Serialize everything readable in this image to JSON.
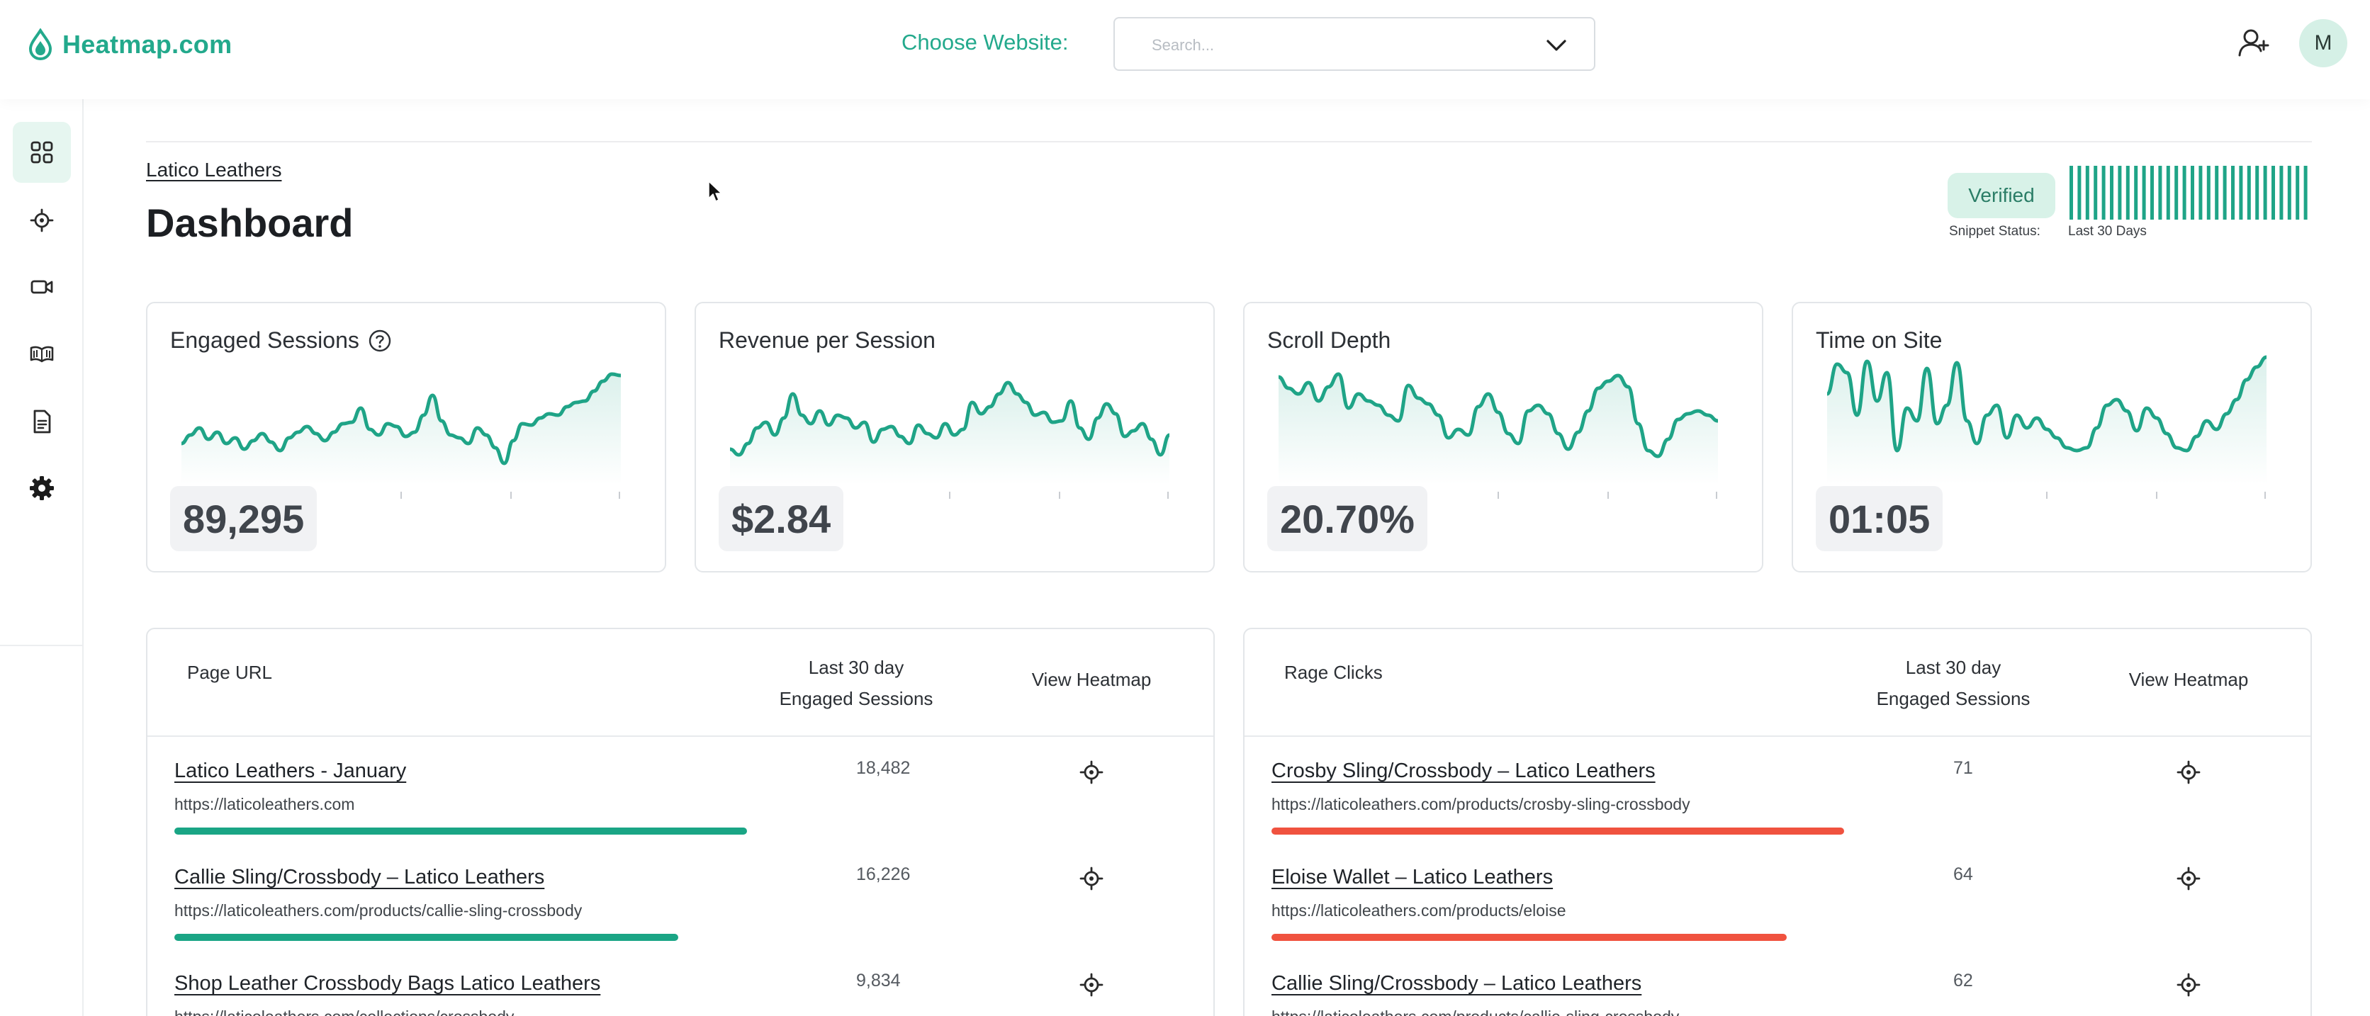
{
  "app": {
    "name": "Heatmap.com"
  },
  "header": {
    "choose_label": "Choose Website:",
    "search_placeholder": "Search...",
    "avatar_initial": "M"
  },
  "sidebar": {
    "items": [
      {
        "icon": "dashboard-grid-icon",
        "active": true
      },
      {
        "icon": "crosshair-icon",
        "active": false
      },
      {
        "icon": "video-camera-icon",
        "active": false
      },
      {
        "icon": "book-icon",
        "active": false
      },
      {
        "icon": "document-icon",
        "active": false
      },
      {
        "icon": "gear-icon",
        "active": false
      }
    ]
  },
  "page": {
    "breadcrumb": "Latico Leathers",
    "title": "Dashboard",
    "status_badge": "Verified",
    "snippet_label": "Snippet Status:",
    "snippet_period": "Last 30 Days"
  },
  "metrics": [
    {
      "title": "Engaged Sessions",
      "value": "89,295",
      "has_help": true
    },
    {
      "title": "Revenue per Session",
      "value": "$2.84",
      "has_help": false
    },
    {
      "title": "Scroll Depth",
      "value": "20.70%",
      "has_help": false
    },
    {
      "title": "Time on Site",
      "value": "01:05",
      "has_help": false
    }
  ],
  "pages_table": {
    "col1": "Page URL",
    "col2_line1": "Last 30 day",
    "col2_line2": "Engaged Sessions",
    "col3": "View Heatmap",
    "bar_color": "#1aa585",
    "rows": [
      {
        "title": "Latico Leathers - January",
        "url": "https://laticoleathers.com",
        "count": "18,482",
        "share": 1.0
      },
      {
        "title": "Callie Sling/Crossbody – Latico Leathers",
        "url": "https://laticoleathers.com/products/callie-sling-crossbody",
        "count": "16,226",
        "share": 0.88
      },
      {
        "title": "Shop Leather Crossbody Bags Latico Leathers",
        "url": "https://laticoleathers.com/collections/crossbody",
        "count": "9,834",
        "share": 0.53
      }
    ]
  },
  "rage_table": {
    "col1": "Rage Clicks",
    "col2_line1": "Last 30 day",
    "col2_line2": "Engaged Sessions",
    "col3": "View Heatmap",
    "bar_color": "#f0523f",
    "rows": [
      {
        "title": "Crosby Sling/Crossbody – Latico Leathers",
        "url": "https://laticoleathers.com/products/crosby-sling-crossbody",
        "count": "71",
        "share": 1.0
      },
      {
        "title": "Eloise Wallet – Latico Leathers",
        "url": "https://laticoleathers.com/products/eloise",
        "count": "64",
        "share": 0.9
      },
      {
        "title": "Callie Sling/Crossbody – Latico Leathers",
        "url": "https://laticoleathers.com/products/callie-sling-crossbody",
        "count": "62",
        "share": 0.87
      }
    ]
  },
  "colors": {
    "accent": "#23a98c",
    "spark": "#1fa487",
    "rage": "#f0523f"
  }
}
